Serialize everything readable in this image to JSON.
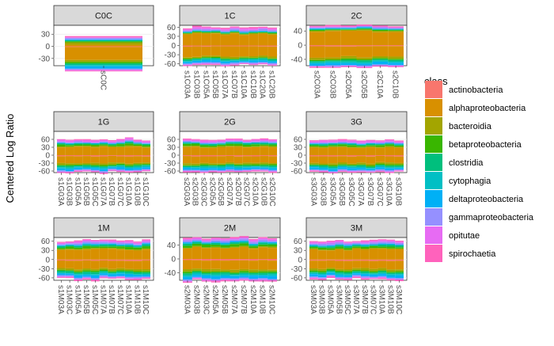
{
  "chart_data": {
    "type": "bar",
    "subtype": "stacked-bar faceted",
    "ylabel": "Centered Log Ratio",
    "legend": {
      "title": "class",
      "position": "right",
      "entries": [
        {
          "name": "actinobacteria",
          "color": "#F8766D"
        },
        {
          "name": "alphaproteobacteria",
          "color": "#D89000"
        },
        {
          "name": "bacteroidia",
          "color": "#A3A500"
        },
        {
          "name": "betaproteobacteria",
          "color": "#39B600"
        },
        {
          "name": "clostridia",
          "color": "#00BF7D"
        },
        {
          "name": "cytophagia",
          "color": "#00BFC4"
        },
        {
          "name": "deltaproteobacteria",
          "color": "#00B0F6"
        },
        {
          "name": "gammaproteobacteria",
          "color": "#9590FF"
        },
        {
          "name": "opitutae",
          "color": "#E76BF3"
        },
        {
          "name": "spirochaetia",
          "color": "#FF62BC"
        }
      ]
    },
    "panels": [
      {
        "title": "C0C",
        "ylim": [
          -48,
          52
        ],
        "yticks": [
          -30,
          0,
          30
        ],
        "categories": [
          "sC0C"
        ],
        "pos": [
          -1,
          4,
          5,
          2,
          3,
          0,
          2,
          3,
          2,
          4
        ],
        "neg": [
          -2,
          -30,
          -5,
          -3,
          -4,
          -3,
          -5,
          -3,
          -2,
          -2
        ]
      },
      {
        "title": "1C",
        "ylim": [
          -66,
          66
        ],
        "yticks": [
          -60,
          -30,
          0,
          30,
          60
        ],
        "categories": [
          "s1C03A",
          "s1C03B",
          "s1C05A",
          "s1C05B",
          "s1C07A",
          "s1C07B",
          "s1C10A",
          "s1C10B",
          "s1C20A",
          "s1C20B"
        ],
        "pos": [
          -1,
          38,
          3,
          2,
          3,
          0,
          2,
          5,
          5,
          4
        ],
        "neg": [
          -3,
          -32,
          -5,
          -3,
          -4,
          -4,
          -5,
          -4,
          -2,
          -2
        ]
      },
      {
        "title": "2C",
        "ylim": [
          -58,
          56
        ],
        "yticks": [
          -40,
          0,
          40
        ],
        "categories": [
          "s2C03A",
          "s2C03B",
          "s2C05A",
          "s2C05B",
          "s2C10A",
          "s2C10B"
        ],
        "pos": [
          -1,
          38,
          3,
          2,
          2,
          0,
          2,
          3,
          2,
          3
        ],
        "neg": [
          -3,
          -30,
          -5,
          -3,
          -4,
          -4,
          -6,
          -3,
          -2,
          -2
        ]
      },
      {
        "title": "1G",
        "ylim": [
          -66,
          90
        ],
        "yticks": [
          -60,
          -30,
          0,
          30,
          60
        ],
        "categories": [
          "s1G03A",
          "s1G03B",
          "s1G05A",
          "s1G05B",
          "s1G05C",
          "s1G07A",
          "s1G07B",
          "s1G07C",
          "s1G10A",
          "s1G10B",
          "s1G10C"
        ],
        "pos": [
          -1,
          30,
          4,
          6,
          5,
          0,
          2,
          4,
          6,
          3
        ],
        "neg": [
          -4,
          -25,
          -6,
          -4,
          -5,
          -4,
          -7,
          -4,
          -2,
          -3
        ]
      },
      {
        "title": "2G",
        "ylim": [
          -66,
          90
        ],
        "yticks": [
          -60,
          -30,
          0,
          30,
          60
        ],
        "categories": [
          "s2G03A",
          "s2G03B",
          "s2G03C",
          "s2G05A",
          "s2G05B",
          "s2G07A",
          "s2G07B",
          "s2G07C",
          "s2G10A",
          "s2G10B",
          "s2G10C"
        ],
        "pos": [
          -1,
          30,
          4,
          6,
          5,
          0,
          2,
          4,
          6,
          3
        ],
        "neg": [
          -4,
          -25,
          -6,
          -4,
          -5,
          -4,
          -7,
          -4,
          -2,
          -3
        ]
      },
      {
        "title": "3G",
        "ylim": [
          -66,
          90
        ],
        "yticks": [
          -60,
          -30,
          0,
          30,
          60
        ],
        "categories": [
          "s3G03A",
          "s3G03B",
          "s3G05A",
          "s3G05B",
          "s3G05C",
          "s3G07A",
          "s3G07B",
          "s3G07C",
          "s3G10A",
          "s3G10B"
        ],
        "pos": [
          -1,
          30,
          4,
          6,
          5,
          0,
          2,
          4,
          6,
          3
        ],
        "neg": [
          -4,
          -25,
          -6,
          -4,
          -5,
          -4,
          -7,
          -4,
          -2,
          -3
        ]
      },
      {
        "title": "1M",
        "ylim": [
          -68,
          72
        ],
        "yticks": [
          -60,
          -30,
          0,
          30,
          60
        ],
        "categories": [
          "s1M03A",
          "s1M03C",
          "s1M05A",
          "s1M05B",
          "s1M05C",
          "s1M07A",
          "s1M07B",
          "s1M07C",
          "s1M10A",
          "s1M10B",
          "s1M10C"
        ],
        "pos": [
          -1,
          32,
          3,
          6,
          5,
          0,
          3,
          5,
          5,
          3
        ],
        "neg": [
          -4,
          -26,
          -6,
          -4,
          -5,
          -4,
          -7,
          -4,
          -2,
          -3
        ]
      },
      {
        "title": "2M",
        "ylim": [
          -62,
          62
        ],
        "yticks": [
          -40,
          0,
          40
        ],
        "categories": [
          "s2M03A",
          "s2M03B",
          "s2M03C",
          "s2M05A",
          "s2M05B",
          "s2M07A",
          "s2M07B",
          "s2M10A",
          "s2M10B",
          "s2M10C"
        ],
        "pos": [
          -1,
          32,
          3,
          6,
          5,
          0,
          3,
          5,
          5,
          3
        ],
        "neg": [
          -4,
          -26,
          -6,
          -4,
          -5,
          -4,
          -7,
          -4,
          -2,
          -3
        ]
      },
      {
        "title": "3M",
        "ylim": [
          -68,
          72
        ],
        "yticks": [
          -60,
          -30,
          0,
          30,
          60
        ],
        "categories": [
          "s3M03A",
          "s3M03B",
          "s3M05A",
          "s3M05B",
          "s3M05C",
          "s3M07A",
          "s3M07B",
          "s3M07C",
          "s3M10A",
          "s3M10B",
          "s3M10C"
        ],
        "pos": [
          -1,
          32,
          3,
          6,
          5,
          0,
          3,
          5,
          5,
          3
        ],
        "neg": [
          -4,
          -26,
          -6,
          -4,
          -5,
          -4,
          -7,
          -4,
          -2,
          -3
        ]
      }
    ]
  }
}
